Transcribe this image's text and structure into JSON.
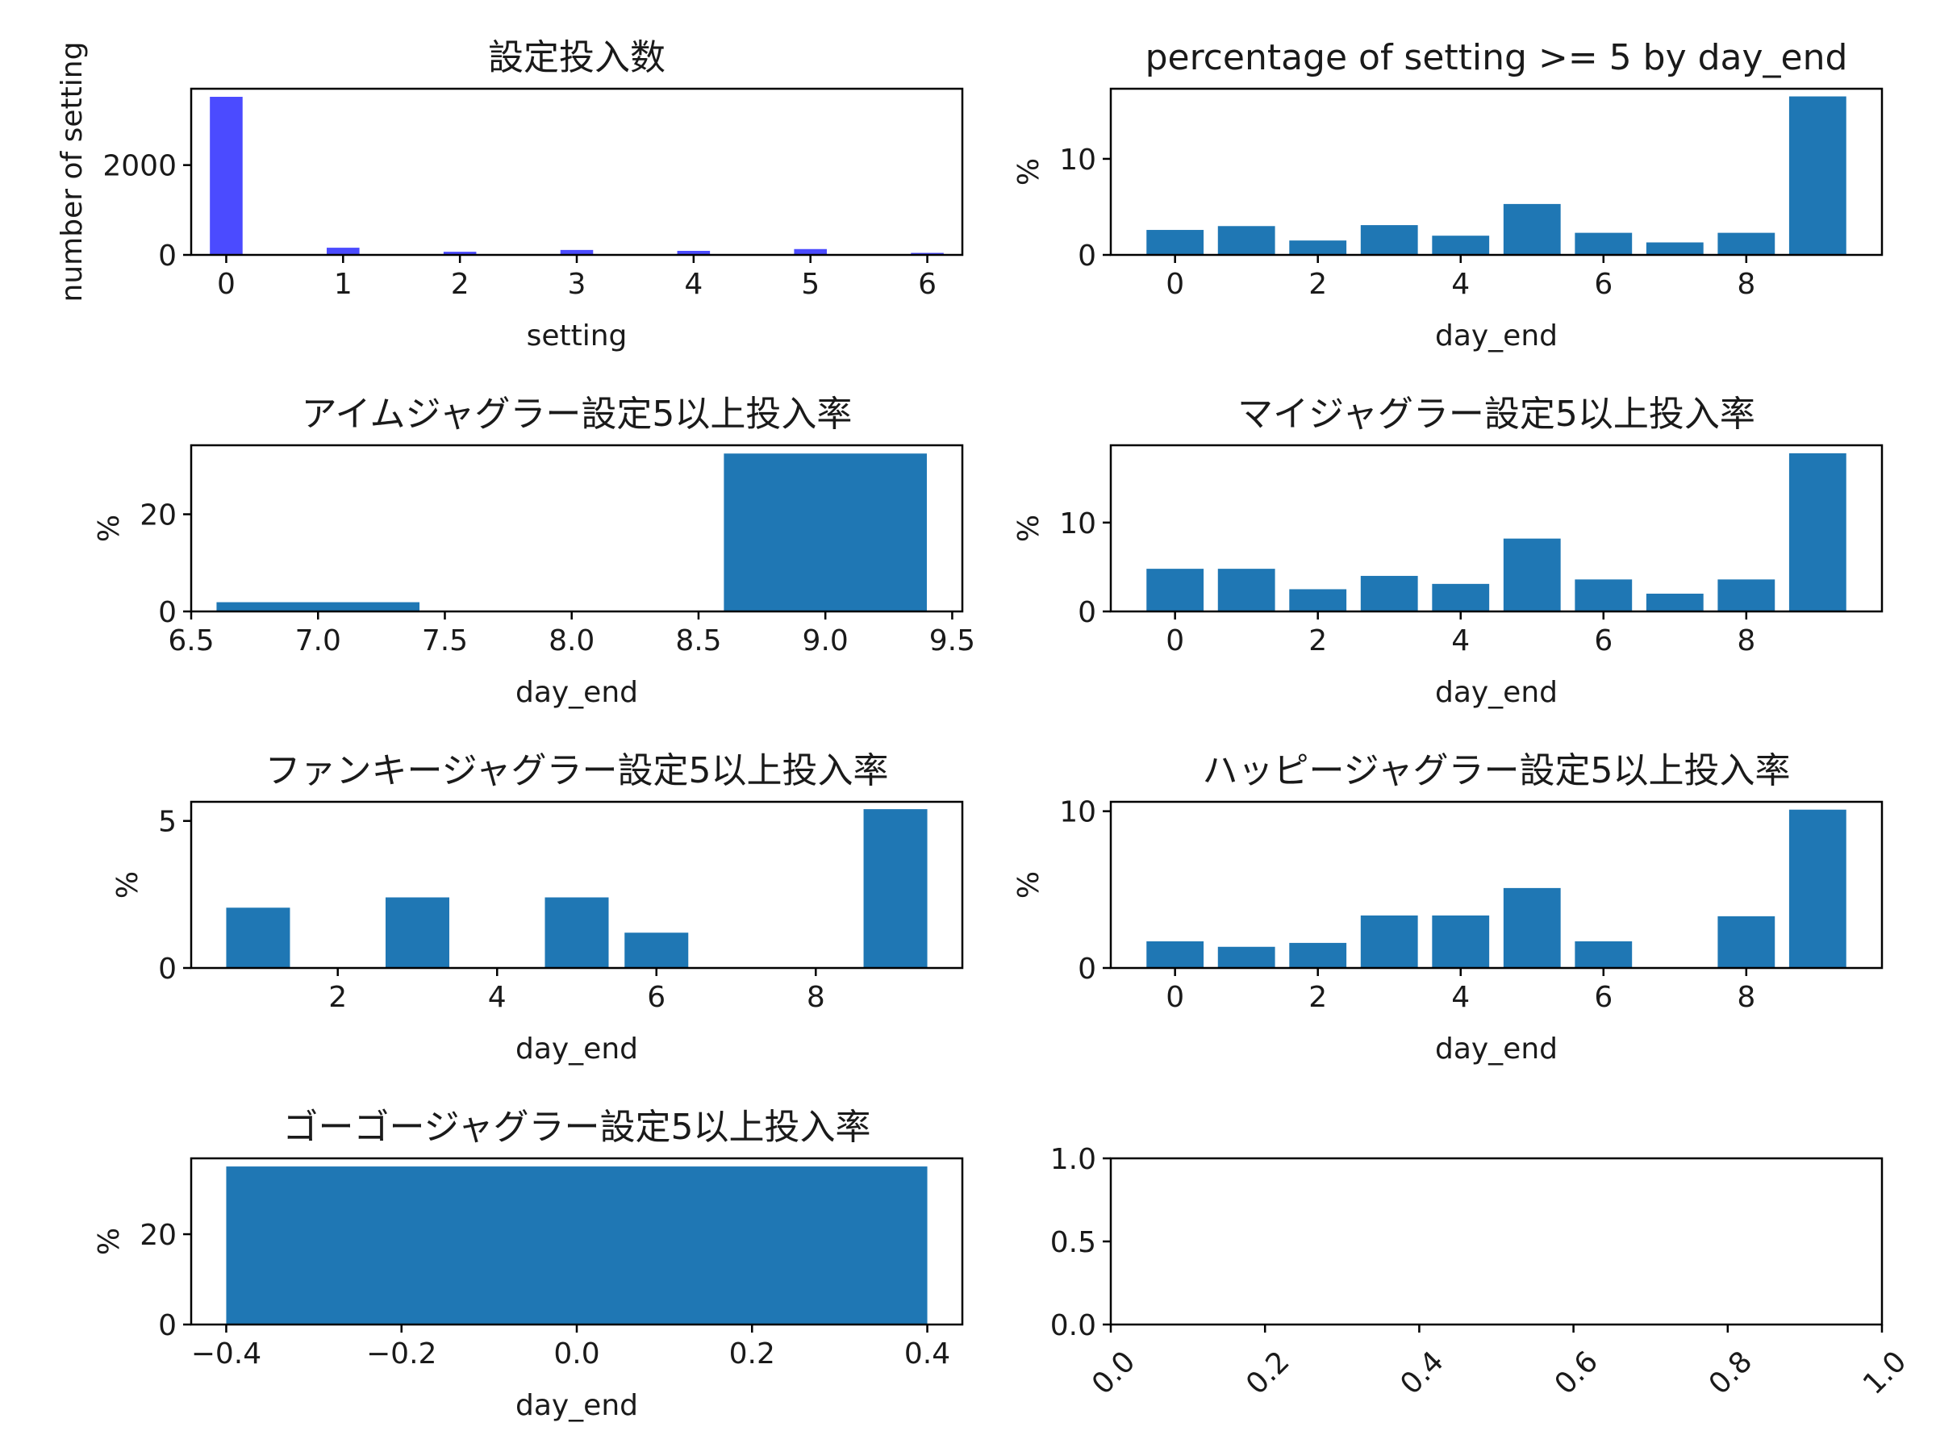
{
  "chart_data": [
    {
      "id": "p0",
      "type": "bar",
      "title": "設定投入数",
      "xlabel": "setting",
      "ylabel": "number of setting",
      "bar_color": "#4b4bff",
      "bar_width": 0.28,
      "x": [
        0,
        1,
        2,
        3,
        4,
        5,
        6
      ],
      "values": [
        3520,
        160,
        70,
        110,
        90,
        130,
        45
      ],
      "xlim": [
        -0.3,
        6.3
      ],
      "ylim": [
        0,
        3700
      ],
      "xticks": [
        0,
        1,
        2,
        3,
        4,
        5,
        6
      ],
      "xtick_labels": [
        "0",
        "1",
        "2",
        "3",
        "4",
        "5",
        "6"
      ],
      "yticks": [
        0,
        2000
      ],
      "ytick_labels": [
        "0",
        "2000"
      ]
    },
    {
      "id": "p1",
      "type": "bar",
      "title": "percentage of setting >= 5 by day_end",
      "xlabel": "day_end",
      "ylabel": "%",
      "bar_color": "#1f77b4",
      "bar_width": 0.8,
      "x": [
        0,
        1,
        2,
        3,
        4,
        5,
        6,
        7,
        8,
        9
      ],
      "values": [
        2.6,
        3.0,
        1.5,
        3.1,
        2.0,
        5.3,
        2.3,
        1.3,
        2.3,
        16.5
      ],
      "xlim": [
        -0.9,
        9.9
      ],
      "ylim": [
        0,
        17.3
      ],
      "xticks": [
        0,
        2,
        4,
        6,
        8
      ],
      "xtick_labels": [
        "0",
        "2",
        "4",
        "6",
        "8"
      ],
      "yticks": [
        0,
        10
      ],
      "ytick_labels": [
        "0",
        "10"
      ]
    },
    {
      "id": "p2",
      "type": "bar",
      "title": "アイムジャグラー設定5以上投入率",
      "xlabel": "day_end",
      "ylabel": "%",
      "bar_color": "#1f77b4",
      "bar_width": 0.8,
      "x": [
        7,
        9
      ],
      "values": [
        1.9,
        32.5
      ],
      "xlim": [
        6.5,
        9.54
      ],
      "ylim": [
        0,
        34.2
      ],
      "xticks": [
        6.5,
        7.0,
        7.5,
        8.0,
        8.5,
        9.0,
        9.5
      ],
      "xtick_labels": [
        "6.5",
        "7.0",
        "7.5",
        "8.0",
        "8.5",
        "9.0",
        "9.5"
      ],
      "yticks": [
        0,
        20
      ],
      "ytick_labels": [
        "0",
        "20"
      ]
    },
    {
      "id": "p3",
      "type": "bar",
      "title": "マイジャグラー設定5以上投入率",
      "xlabel": "day_end",
      "ylabel": "%",
      "bar_color": "#1f77b4",
      "bar_width": 0.8,
      "x": [
        0,
        1,
        2,
        3,
        4,
        5,
        6,
        7,
        8,
        9
      ],
      "values": [
        4.8,
        4.8,
        2.5,
        4.0,
        3.1,
        8.2,
        3.6,
        2.0,
        3.6,
        17.8
      ],
      "xlim": [
        -0.9,
        9.9
      ],
      "ylim": [
        0,
        18.7
      ],
      "xticks": [
        0,
        2,
        4,
        6,
        8
      ],
      "xtick_labels": [
        "0",
        "2",
        "4",
        "6",
        "8"
      ],
      "yticks": [
        0,
        10
      ],
      "ytick_labels": [
        "0",
        "10"
      ]
    },
    {
      "id": "p4",
      "type": "bar",
      "title": "ファンキージャグラー設定5以上投入率",
      "xlabel": "day_end",
      "ylabel": "%",
      "bar_color": "#1f77b4",
      "bar_width": 0.8,
      "x": [
        1,
        2,
        3,
        4,
        5,
        6,
        7,
        8,
        9
      ],
      "values": [
        2.05,
        0,
        2.4,
        0,
        2.4,
        1.2,
        0,
        0,
        5.4
      ],
      "xlim": [
        0.16,
        9.84
      ],
      "ylim": [
        0,
        5.65
      ],
      "xticks": [
        2,
        4,
        6,
        8
      ],
      "xtick_labels": [
        "2",
        "4",
        "6",
        "8"
      ],
      "yticks": [
        0,
        5
      ],
      "ytick_labels": [
        "0",
        "5"
      ]
    },
    {
      "id": "p5",
      "type": "bar",
      "title": "ハッピージャグラー設定5以上投入率",
      "xlabel": "day_end",
      "ylabel": "%",
      "bar_color": "#1f77b4",
      "bar_width": 0.8,
      "x": [
        0,
        1,
        2,
        3,
        4,
        5,
        6,
        7,
        8,
        9
      ],
      "values": [
        1.7,
        1.35,
        1.6,
        3.35,
        3.35,
        5.1,
        1.7,
        0,
        3.3,
        10.1
      ],
      "xlim": [
        -0.9,
        9.9
      ],
      "ylim": [
        0,
        10.6
      ],
      "xticks": [
        0,
        2,
        4,
        6,
        8
      ],
      "xtick_labels": [
        "0",
        "2",
        "4",
        "6",
        "8"
      ],
      "yticks": [
        0,
        10
      ],
      "ytick_labels": [
        "0",
        "10"
      ]
    },
    {
      "id": "p6",
      "type": "bar",
      "title": "ゴーゴージャグラー設定5以上投入率",
      "xlabel": "day_end",
      "ylabel": "%",
      "bar_color": "#1f77b4",
      "bar_width": 0.8,
      "x": [
        0
      ],
      "values": [
        35.0
      ],
      "xlim": [
        -0.44,
        0.44
      ],
      "ylim": [
        0,
        36.8
      ],
      "xticks": [
        -0.4,
        -0.2,
        0.0,
        0.2,
        0.4
      ],
      "xtick_labels": [
        "−0.4",
        "−0.2",
        "0.0",
        "0.2",
        "0.4"
      ],
      "yticks": [
        0,
        20
      ],
      "ytick_labels": [
        "0",
        "20"
      ]
    },
    {
      "id": "p7",
      "type": "bar",
      "title": "",
      "xlabel": "",
      "ylabel": "",
      "bar_color": "#1f77b4",
      "bar_width": 0.8,
      "x": [],
      "values": [],
      "xlim": [
        0,
        1
      ],
      "ylim": [
        0,
        1
      ],
      "xticks": [
        0.0,
        0.2,
        0.4,
        0.6,
        0.8,
        1.0
      ],
      "xtick_labels": [
        "0.0",
        "0.2",
        "0.4",
        "0.6",
        "0.8",
        "1.0"
      ],
      "xtick_rotation": 45,
      "yticks": [
        0.0,
        0.5,
        1.0
      ],
      "ytick_labels": [
        "0.0",
        "0.5",
        "1.0"
      ]
    }
  ]
}
